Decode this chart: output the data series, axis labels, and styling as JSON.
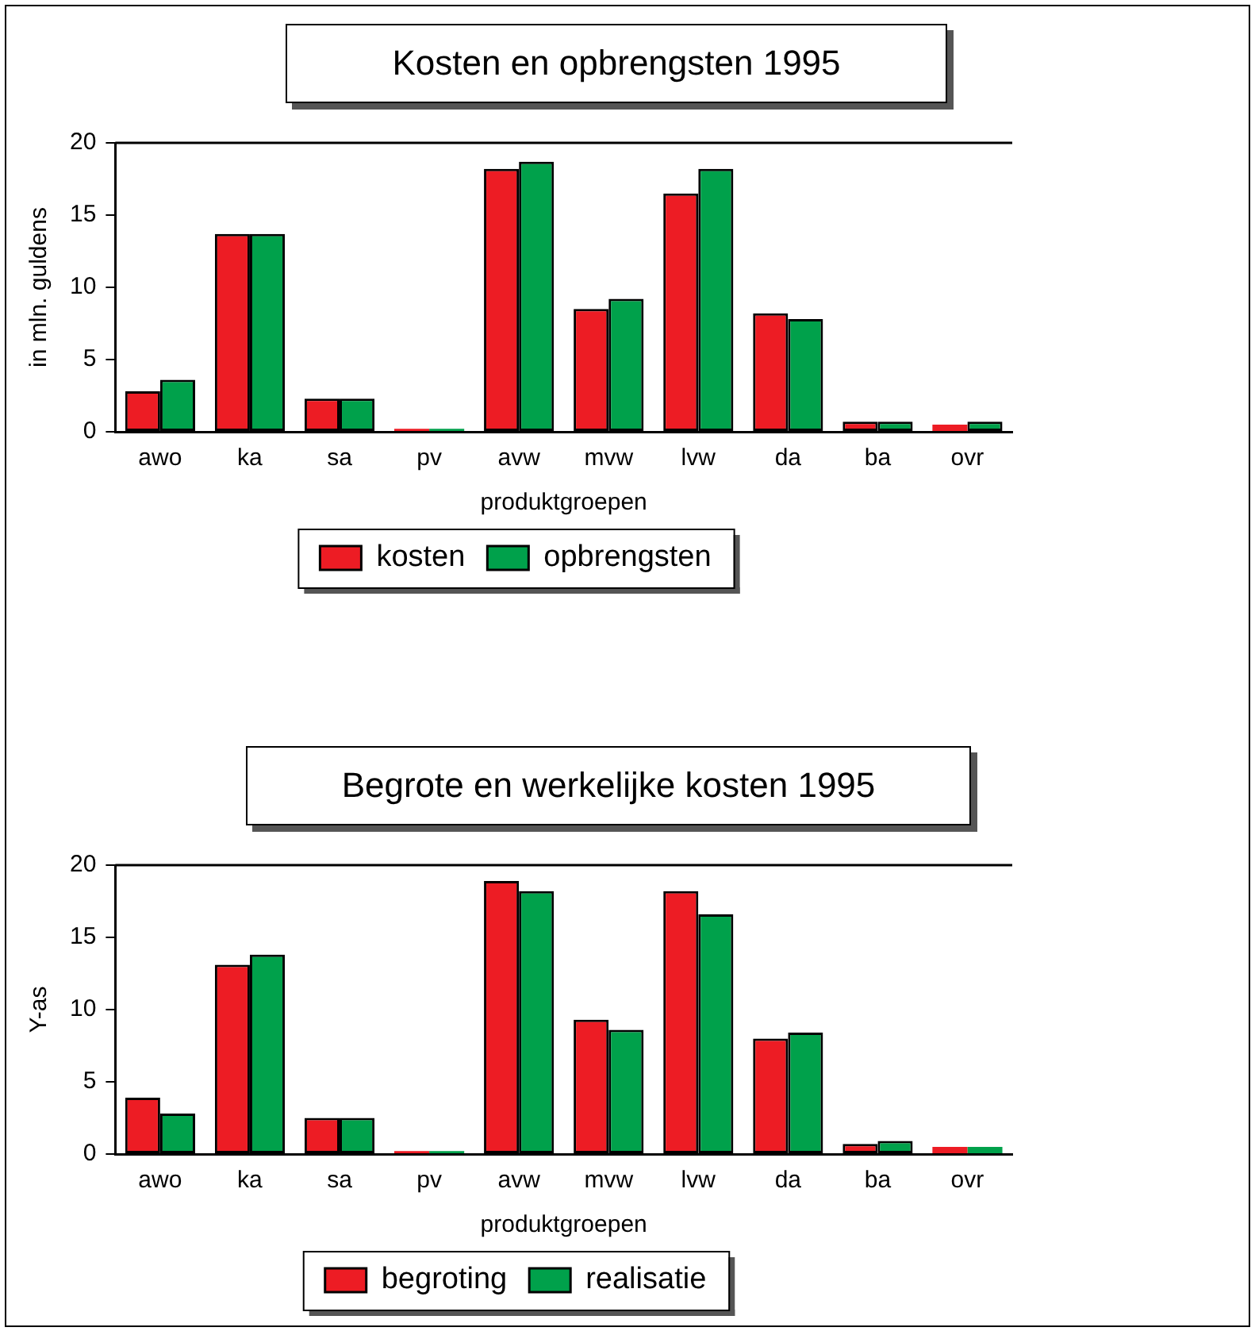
{
  "chart_data": [
    {
      "type": "bar",
      "title": "Kosten en opbrengsten 1995",
      "xlabel": "produktgroepen",
      "ylabel": "in mln. guldens",
      "categories": [
        "awo",
        "ka",
        "sa",
        "pv",
        "avw",
        "mvw",
        "lvw",
        "da",
        "ba",
        "ovr"
      ],
      "series": [
        {
          "name": "kosten",
          "color": "#ed1c24",
          "values": [
            2.8,
            13.7,
            2.3,
            0.2,
            18.2,
            8.5,
            16.5,
            8.2,
            0.7,
            0.5
          ]
        },
        {
          "name": "opbrengsten",
          "color": "#00a14b",
          "values": [
            3.6,
            13.7,
            2.3,
            0.2,
            18.7,
            9.2,
            18.2,
            7.8,
            0.7,
            0.7
          ]
        }
      ],
      "ylim": [
        0,
        20
      ],
      "yticks": [
        0,
        5,
        10,
        15,
        20
      ],
      "grid": false,
      "legend": "bottom"
    },
    {
      "type": "bar",
      "title": "Begrote en werkelijke kosten 1995",
      "xlabel": "produktgroepen",
      "ylabel": "Y-as",
      "categories": [
        "awo",
        "ka",
        "sa",
        "pv",
        "avw",
        "mvw",
        "lvw",
        "da",
        "ba",
        "ovr"
      ],
      "series": [
        {
          "name": "begroting",
          "color": "#ed1c24",
          "values": [
            3.9,
            13.1,
            2.5,
            0.2,
            18.9,
            9.3,
            18.2,
            8.0,
            0.7,
            0.5
          ]
        },
        {
          "name": "realisatie",
          "color": "#00a14b",
          "values": [
            2.8,
            13.8,
            2.5,
            0.2,
            18.2,
            8.6,
            16.6,
            8.4,
            0.9,
            0.5
          ]
        }
      ],
      "ylim": [
        0,
        20
      ],
      "yticks": [
        0,
        5,
        10,
        15,
        20
      ],
      "grid": false,
      "legend": "bottom"
    }
  ]
}
